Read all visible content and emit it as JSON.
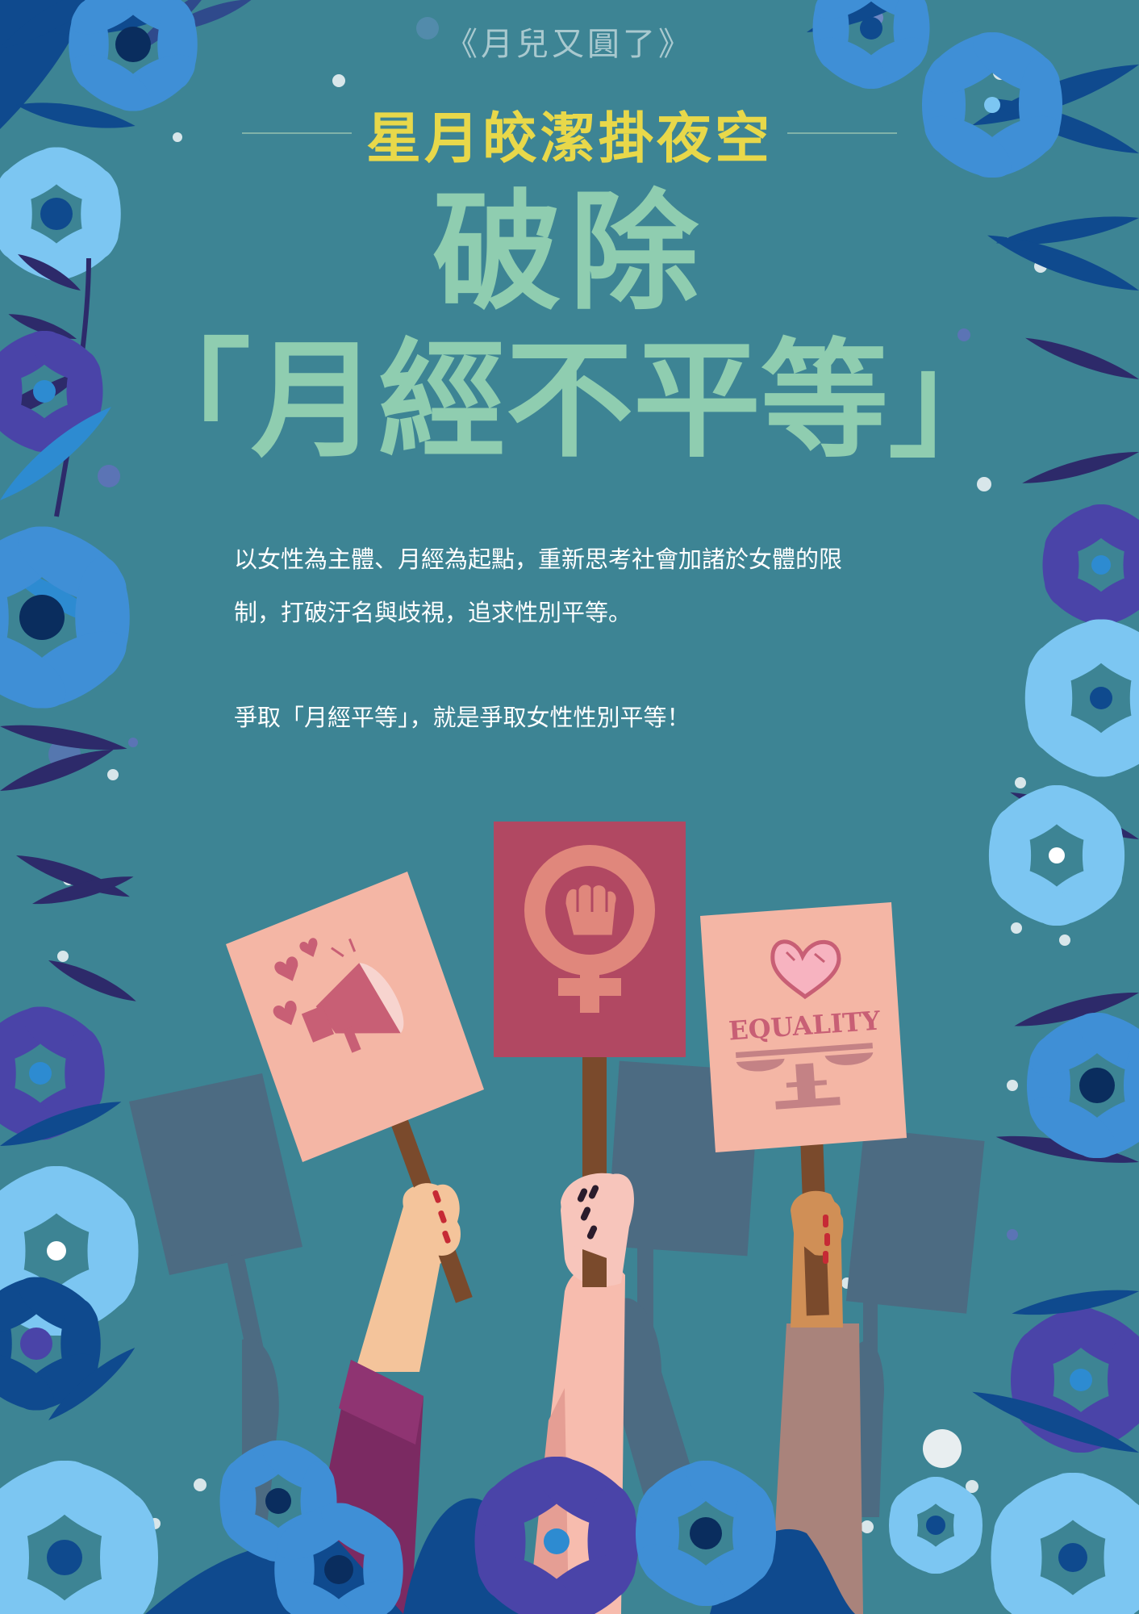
{
  "poster": {
    "series_title": "《月兒又圓了》",
    "subtitle": "星月皎潔掛夜空",
    "title_line1": "破除",
    "title_line2": "「月經不平等」",
    "body": {
      "paragraph1_line1": "以女性為主體、月經為起點，重新思考社會加諸於女體的限",
      "paragraph1_line2": "制，打破汙名與歧視，追求性別平等。",
      "paragraph2": "爭取「月經平等」，就是爭取女性性別平等！"
    },
    "equality_sign_text": "EQUALITY",
    "icons": {
      "left_sign": "megaphone-hearts-icon",
      "center_sign": "female-symbol-fist-icon",
      "right_sign_top": "heart-icon",
      "right_sign_bottom": "balance-scale-icon"
    },
    "colors": {
      "background": "#3d8494",
      "subtitle": "#e8d84a",
      "title": "#8fcdb0",
      "body_text": "#ffffff",
      "sign_pink": "#f4b6a5",
      "sign_crimson": "#b14862"
    }
  }
}
